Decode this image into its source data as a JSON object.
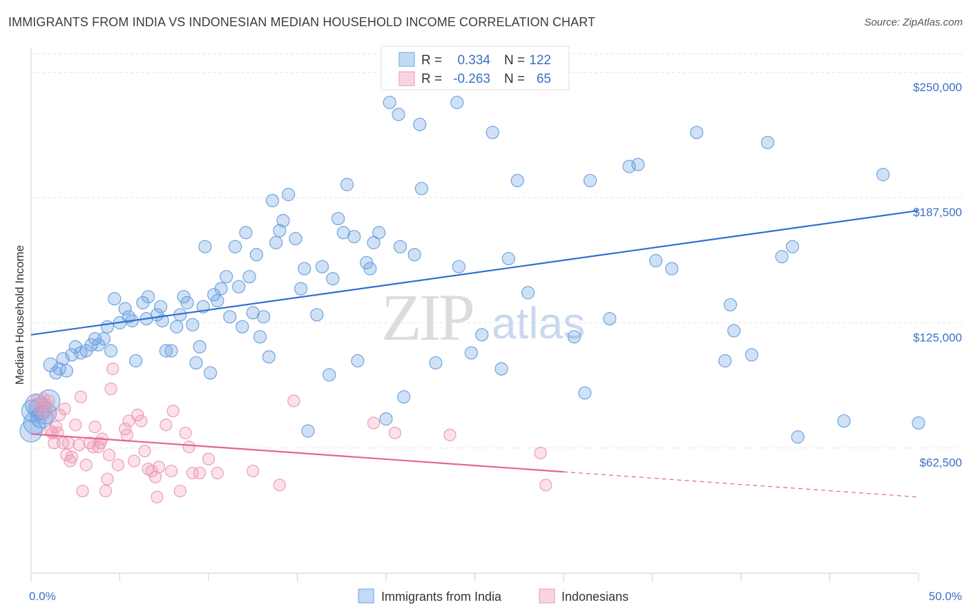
{
  "header": {
    "title": "IMMIGRANTS FROM INDIA VS INDONESIAN MEDIAN HOUSEHOLD INCOME CORRELATION CHART",
    "source": "Source: ZipAtlas.com"
  },
  "watermark": {
    "part1": "ZIP",
    "part2": "atlas"
  },
  "stats": {
    "r_label": "R =",
    "n_label": "N =",
    "rows": [
      {
        "r": "0.334",
        "n": "122",
        "color": "#7aaee8"
      },
      {
        "r": "-0.263",
        "n": "65",
        "color": "#f0a0bc"
      }
    ]
  },
  "legend": {
    "items": [
      {
        "label": "Immigrants from India",
        "color": "#7aaee8"
      },
      {
        "label": "Indonesians",
        "color": "#f0a0bc"
      }
    ]
  },
  "chart_data": {
    "type": "scatter",
    "title": "IMMIGRANTS FROM INDIA VS INDONESIAN MEDIAN HOUSEHOLD INCOME CORRELATION CHART",
    "ylabel": "Median Household Income",
    "xlabel": "",
    "xlim": [
      0,
      50
    ],
    "ylim": [
      0,
      262000
    ],
    "x_tick_labels": [
      "0.0%",
      "50.0%"
    ],
    "y_ticks": [
      62500,
      125000,
      187500,
      250000
    ],
    "y_tick_labels": [
      "$62,500",
      "$125,000",
      "$187,500",
      "$250,000"
    ],
    "grid": "horizontal dashed",
    "legend_position": "bottom-center",
    "series": [
      {
        "name": "Immigrants from India",
        "color": "#6ea3e0",
        "line_color": "#2f6fcf",
        "trend": {
          "x": [
            0,
            50
          ],
          "y": [
            119000,
            181000
          ],
          "dashed_from": null
        },
        "points": [
          [
            0.0,
            71000
          ],
          [
            0.1,
            81000
          ],
          [
            0.2,
            75000
          ],
          [
            0.3,
            84000
          ],
          [
            0.5,
            82000
          ],
          [
            0.6,
            78000
          ],
          [
            0.8,
            80000
          ],
          [
            1.0,
            86000
          ],
          [
            1.1,
            104000
          ],
          [
            1.4,
            100000
          ],
          [
            1.6,
            102000
          ],
          [
            1.8,
            107000
          ],
          [
            2.0,
            101000
          ],
          [
            2.3,
            109000
          ],
          [
            2.5,
            113000
          ],
          [
            2.8,
            110000
          ],
          [
            3.1,
            111000
          ],
          [
            3.4,
            114000
          ],
          [
            3.6,
            117000
          ],
          [
            3.8,
            114000
          ],
          [
            4.1,
            117000
          ],
          [
            4.3,
            123000
          ],
          [
            4.5,
            111000
          ],
          [
            4.7,
            137000
          ],
          [
            5.0,
            125000
          ],
          [
            5.3,
            132000
          ],
          [
            5.5,
            128000
          ],
          [
            5.7,
            126000
          ],
          [
            5.9,
            106000
          ],
          [
            6.3,
            135000
          ],
          [
            6.5,
            127000
          ],
          [
            6.6,
            138000
          ],
          [
            7.1,
            129000
          ],
          [
            7.3,
            133000
          ],
          [
            7.4,
            126000
          ],
          [
            7.6,
            111000
          ],
          [
            7.9,
            111000
          ],
          [
            8.2,
            123000
          ],
          [
            8.4,
            129000
          ],
          [
            8.6,
            138000
          ],
          [
            8.8,
            135000
          ],
          [
            9.1,
            124000
          ],
          [
            9.3,
            105000
          ],
          [
            9.5,
            113000
          ],
          [
            9.7,
            133000
          ],
          [
            9.8,
            163000
          ],
          [
            10.1,
            100000
          ],
          [
            10.3,
            139000
          ],
          [
            10.5,
            136000
          ],
          [
            10.7,
            142000
          ],
          [
            11.0,
            148000
          ],
          [
            11.2,
            128000
          ],
          [
            11.5,
            163000
          ],
          [
            11.7,
            143000
          ],
          [
            11.9,
            123000
          ],
          [
            12.1,
            170000
          ],
          [
            12.3,
            148000
          ],
          [
            12.5,
            130000
          ],
          [
            12.7,
            159000
          ],
          [
            12.9,
            118000
          ],
          [
            13.1,
            128000
          ],
          [
            13.4,
            108000
          ],
          [
            13.6,
            186000
          ],
          [
            13.8,
            165000
          ],
          [
            14.0,
            171000
          ],
          [
            14.2,
            176000
          ],
          [
            14.5,
            189000
          ],
          [
            14.9,
            167000
          ],
          [
            15.2,
            142000
          ],
          [
            15.4,
            152000
          ],
          [
            15.6,
            71000
          ],
          [
            16.1,
            129000
          ],
          [
            16.4,
            153000
          ],
          [
            16.8,
            99000
          ],
          [
            17.0,
            147000
          ],
          [
            17.3,
            177000
          ],
          [
            17.6,
            170000
          ],
          [
            17.8,
            194000
          ],
          [
            18.2,
            168000
          ],
          [
            18.4,
            106000
          ],
          [
            18.9,
            155000
          ],
          [
            19.1,
            152000
          ],
          [
            19.3,
            165000
          ],
          [
            19.6,
            170000
          ],
          [
            20.0,
            77000
          ],
          [
            20.2,
            235000
          ],
          [
            20.8,
            163000
          ],
          [
            20.7,
            229000
          ],
          [
            21.0,
            88000
          ],
          [
            21.6,
            159000
          ],
          [
            21.9,
            224000
          ],
          [
            22.0,
            192000
          ],
          [
            22.8,
            105000
          ],
          [
            24.0,
            235000
          ],
          [
            24.1,
            153000
          ],
          [
            24.8,
            110000
          ],
          [
            25.4,
            119000
          ],
          [
            26.0,
            220000
          ],
          [
            26.5,
            102000
          ],
          [
            26.9,
            157000
          ],
          [
            27.4,
            196000
          ],
          [
            28.0,
            140000
          ],
          [
            30.6,
            118000
          ],
          [
            31.2,
            90000
          ],
          [
            31.5,
            196000
          ],
          [
            32.6,
            127000
          ],
          [
            33.7,
            203000
          ],
          [
            34.2,
            204000
          ],
          [
            35.2,
            156000
          ],
          [
            36.1,
            152000
          ],
          [
            37.5,
            220000
          ],
          [
            39.1,
            106000
          ],
          [
            39.4,
            134000
          ],
          [
            39.6,
            121000
          ],
          [
            40.6,
            109000
          ],
          [
            41.5,
            215000
          ],
          [
            42.3,
            158000
          ],
          [
            42.9,
            163000
          ],
          [
            43.2,
            68000
          ],
          [
            45.8,
            76000
          ],
          [
            48.0,
            199000
          ],
          [
            50.0,
            75000
          ]
        ]
      },
      {
        "name": "Indonesians",
        "color": "#ef9bb8",
        "line_color": "#e3648f",
        "trend": {
          "x": [
            0,
            50
          ],
          "y": [
            69500,
            38000
          ],
          "dashed_from": 30
        },
        "points": [
          [
            0.3,
            86000
          ],
          [
            0.5,
            82000
          ],
          [
            0.7,
            87000
          ],
          [
            0.8,
            80000
          ],
          [
            0.9,
            84000
          ],
          [
            1.0,
            86000
          ],
          [
            1.1,
            71000
          ],
          [
            1.2,
            70000
          ],
          [
            1.3,
            65000
          ],
          [
            1.4,
            73000
          ],
          [
            1.5,
            70000
          ],
          [
            1.6,
            79000
          ],
          [
            1.8,
            65000
          ],
          [
            1.9,
            82000
          ],
          [
            2.0,
            59000
          ],
          [
            2.1,
            65000
          ],
          [
            2.2,
            56000
          ],
          [
            2.3,
            58000
          ],
          [
            2.5,
            74000
          ],
          [
            2.7,
            64000
          ],
          [
            2.8,
            88000
          ],
          [
            2.9,
            41000
          ],
          [
            3.1,
            54000
          ],
          [
            3.3,
            65000
          ],
          [
            3.5,
            63000
          ],
          [
            3.6,
            73000
          ],
          [
            3.8,
            63000
          ],
          [
            3.9,
            65000
          ],
          [
            4.0,
            67000
          ],
          [
            4.2,
            41000
          ],
          [
            4.3,
            47000
          ],
          [
            4.4,
            59000
          ],
          [
            4.5,
            92000
          ],
          [
            4.6,
            102000
          ],
          [
            4.9,
            54000
          ],
          [
            5.3,
            72000
          ],
          [
            5.4,
            69000
          ],
          [
            5.5,
            76000
          ],
          [
            5.8,
            56000
          ],
          [
            6.0,
            79000
          ],
          [
            6.2,
            76000
          ],
          [
            6.4,
            61000
          ],
          [
            6.6,
            52000
          ],
          [
            6.8,
            51000
          ],
          [
            7.0,
            48000
          ],
          [
            7.1,
            38000
          ],
          [
            7.2,
            53000
          ],
          [
            7.6,
            74000
          ],
          [
            7.9,
            51000
          ],
          [
            8.0,
            81000
          ],
          [
            8.4,
            41000
          ],
          [
            8.7,
            70000
          ],
          [
            8.9,
            63000
          ],
          [
            9.1,
            50000
          ],
          [
            9.5,
            50000
          ],
          [
            10.0,
            57000
          ],
          [
            10.5,
            50000
          ],
          [
            12.5,
            51000
          ],
          [
            14.0,
            44000
          ],
          [
            14.8,
            86000
          ],
          [
            19.3,
            75000
          ],
          [
            20.5,
            70000
          ],
          [
            23.6,
            69000
          ],
          [
            28.7,
            60000
          ],
          [
            29.0,
            44000
          ]
        ]
      }
    ]
  }
}
